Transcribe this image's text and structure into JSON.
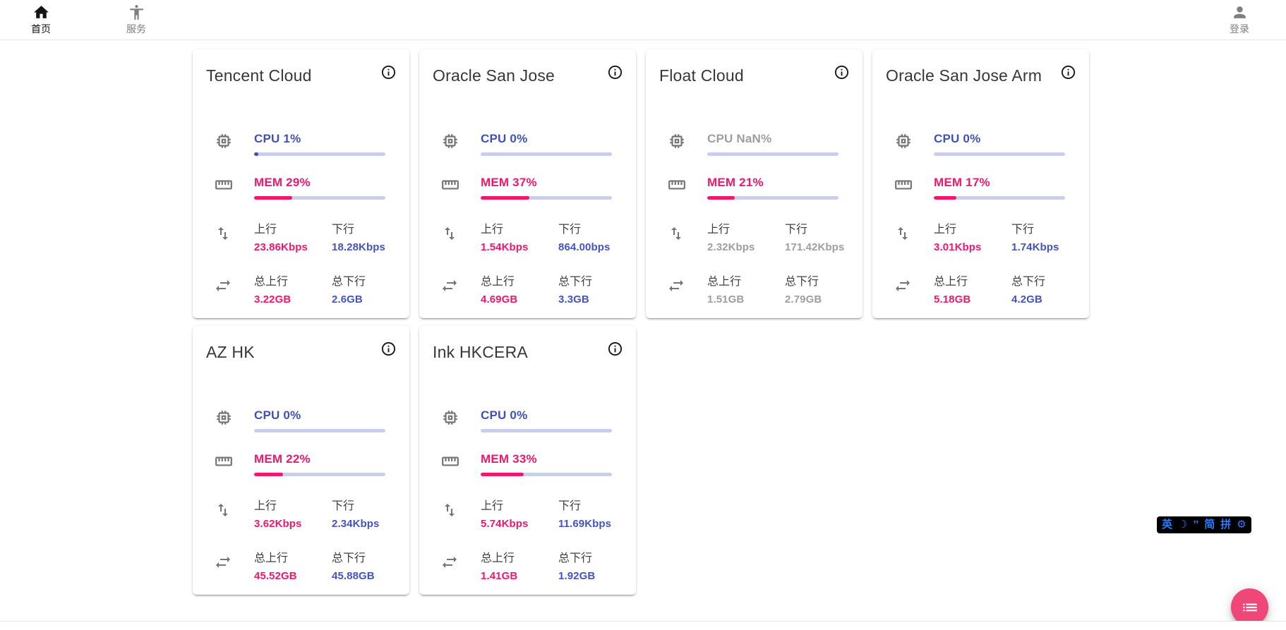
{
  "nav": {
    "home_label": "首页",
    "services_label": "服务",
    "login_label": "登录"
  },
  "shared_labels": {
    "up": "上行",
    "down": "下行",
    "total_up": "总上行",
    "total_down": "总下行"
  },
  "colors": {
    "cpu_blue": "#3f51b5",
    "value_blue": "#4353c4",
    "pink": "#f1186c",
    "track": "#c9cdee",
    "offline_gray": "#9e9e9e",
    "fab_pink": "#f04779",
    "ime_blue": "#2b7cff"
  },
  "servers": [
    {
      "name": "Tencent Cloud",
      "cpu_text": "CPU 1%",
      "cpu_percent": 1,
      "mem_text": "MEM 29%",
      "mem_percent": 29,
      "up_value": "23.86Kbps",
      "down_value": "18.28Kbps",
      "total_up_value": "3.22GB",
      "total_down_value": "2.6GB",
      "online": true
    },
    {
      "name": "Oracle San Jose",
      "cpu_text": "CPU 0%",
      "cpu_percent": 0,
      "mem_text": "MEM 37%",
      "mem_percent": 37,
      "up_value": "1.54Kbps",
      "down_value": "864.00bps",
      "total_up_value": "4.69GB",
      "total_down_value": "3.3GB",
      "online": true
    },
    {
      "name": "Float Cloud",
      "cpu_text": "CPU NaN%",
      "cpu_percent": 0,
      "mem_text": "MEM 21%",
      "mem_percent": 21,
      "up_value": "2.32Kbps",
      "down_value": "171.42Kbps",
      "total_up_value": "1.51GB",
      "total_down_value": "2.79GB",
      "online": false
    },
    {
      "name": "Oracle San Jose Arm",
      "cpu_text": "CPU 0%",
      "cpu_percent": 0,
      "mem_text": "MEM 17%",
      "mem_percent": 17,
      "up_value": "3.01Kbps",
      "down_value": "1.74Kbps",
      "total_up_value": "5.18GB",
      "total_down_value": "4.2GB",
      "online": true
    },
    {
      "name": "AZ HK",
      "cpu_text": "CPU 0%",
      "cpu_percent": 0,
      "mem_text": "MEM 22%",
      "mem_percent": 22,
      "up_value": "3.62Kbps",
      "down_value": "2.34Kbps",
      "total_up_value": "45.52GB",
      "total_down_value": "45.88GB",
      "online": true
    },
    {
      "name": "Ink HKCERA",
      "cpu_text": "CPU 0%",
      "cpu_percent": 0,
      "mem_text": "MEM 33%",
      "mem_percent": 33,
      "up_value": "5.74Kbps",
      "down_value": "11.69Kbps",
      "total_up_value": "1.41GB",
      "total_down_value": "1.92GB",
      "online": true
    }
  ],
  "ime_toolbar": {
    "lang": "英",
    "moon": "☽",
    "punct": "’’",
    "simplified": "简",
    "pinyin": "拼",
    "gear": "⚙"
  }
}
